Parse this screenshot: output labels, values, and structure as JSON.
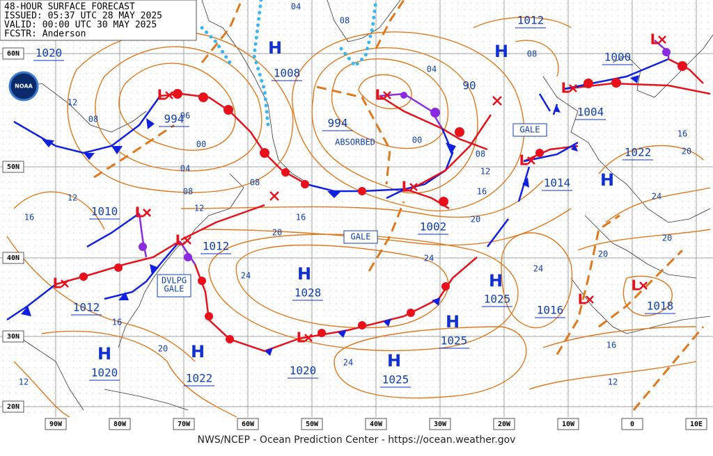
{
  "header": {
    "title": "48-HOUR SURFACE FORECAST",
    "issued": "ISSUED: 05:37 UTC 28 MAY 2025",
    "valid": "VALID: 00:00 UTC 30 MAY 2025",
    "forecaster": "FCSTR: Anderson"
  },
  "logo": "NOAA",
  "lat_labels": [
    "60N",
    "50N",
    "40N",
    "30N",
    "20N"
  ],
  "lon_labels": [
    "90W",
    "80W",
    "70W",
    "60W",
    "50W",
    "40W",
    "30W",
    "20W",
    "10W",
    "0",
    "10E"
  ],
  "pressure_centers": [
    {
      "symbol": "L",
      "value": "994"
    },
    {
      "value": "1020"
    },
    {
      "symbol": "H",
      "value": "1008"
    },
    {
      "symbol": "L",
      "value": "994"
    },
    {
      "symbol": "H",
      "value": "1012"
    },
    {
      "symbol": "L",
      "value": "1000"
    },
    {
      "symbol": "L",
      "value": "1004"
    },
    {
      "symbol": "H",
      "value": "1022"
    },
    {
      "symbol": "L",
      "value": "1014"
    },
    {
      "symbol": "L",
      "value": "1002"
    },
    {
      "symbol": "L",
      "value": "1010"
    },
    {
      "symbol": "L",
      "value": "1012"
    },
    {
      "symbol": "H",
      "value": "1028"
    },
    {
      "symbol": "L",
      "value": "1012"
    },
    {
      "symbol": "H",
      "value": "1025"
    },
    {
      "symbol": "H",
      "value": "1025"
    },
    {
      "symbol": "L",
      "value": "1020"
    },
    {
      "symbol": "H",
      "value": "1025"
    },
    {
      "symbol": "H",
      "value": "1020"
    },
    {
      "symbol": "H",
      "value": "1022"
    },
    {
      "value": "1016"
    },
    {
      "symbol": "L",
      "value": "1018"
    },
    {
      "symbol": "L"
    },
    {
      "symbol": "L"
    }
  ],
  "isobar_labels": [
    "04",
    "08",
    "04",
    "90",
    "08",
    "96",
    "00",
    "08",
    "12",
    "04",
    "08",
    "08",
    "12",
    "12",
    "16",
    "16",
    "20",
    "00",
    "08",
    "12",
    "16",
    "20",
    "24",
    "24",
    "24",
    "20",
    "20",
    "24",
    "20",
    "16",
    "16",
    "20",
    "24",
    "16",
    "12",
    "12"
  ],
  "annotations": [
    "ABSORBED",
    "GALE",
    "GALE",
    "DVLPG",
    "GALE"
  ],
  "footer": "NWS/NCEP - Ocean Prediction Center - https://ocean.weather.gov"
}
